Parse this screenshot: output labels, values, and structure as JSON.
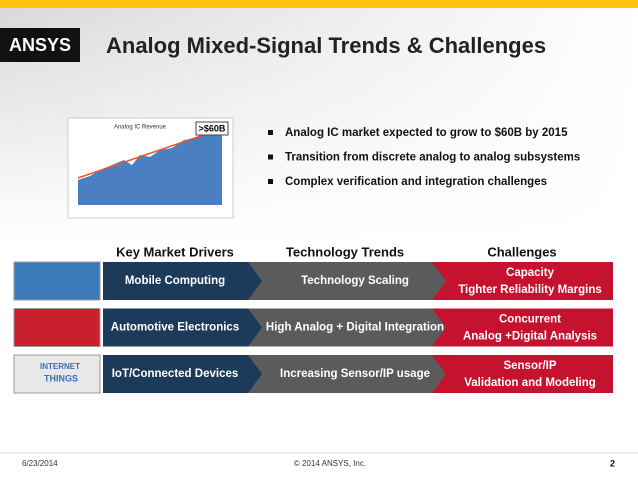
{
  "header": {
    "logo": "ANSYS",
    "title": "Analog Mixed-Signal Trends & Challenges"
  },
  "chart_image": {
    "title": "Analog IC Revenue",
    "callout": ">$60B"
  },
  "bullets": [
    "Analog IC market expected to grow to $60B by 2015",
    "Transition from discrete analog to analog subsystems",
    "Complex verification and integration challenges"
  ],
  "columns": [
    "Key Market Drivers",
    "Technology Trends",
    "Challenges"
  ],
  "rows": [
    {
      "driver": "Mobile Computing",
      "trend": "Technology Scaling",
      "challenge": [
        "Capacity",
        "Tighter Reliability Margins"
      ]
    },
    {
      "driver": "Automotive Electronics",
      "trend": "High Analog + Digital Integration",
      "challenge": [
        "Concurrent",
        "Analog +Digital Analysis"
      ]
    },
    {
      "driver": "IoT/Connected Devices",
      "trend": "Increasing Sensor/IP usage",
      "challenge": [
        "Sensor/IP",
        "Validation and Modeling"
      ]
    }
  ],
  "iot_image": [
    "INTERNET",
    "THINGS"
  ],
  "footer": {
    "date": "6/23/2014",
    "copyright": "© 2014 ANSYS, Inc.",
    "page": "2"
  }
}
